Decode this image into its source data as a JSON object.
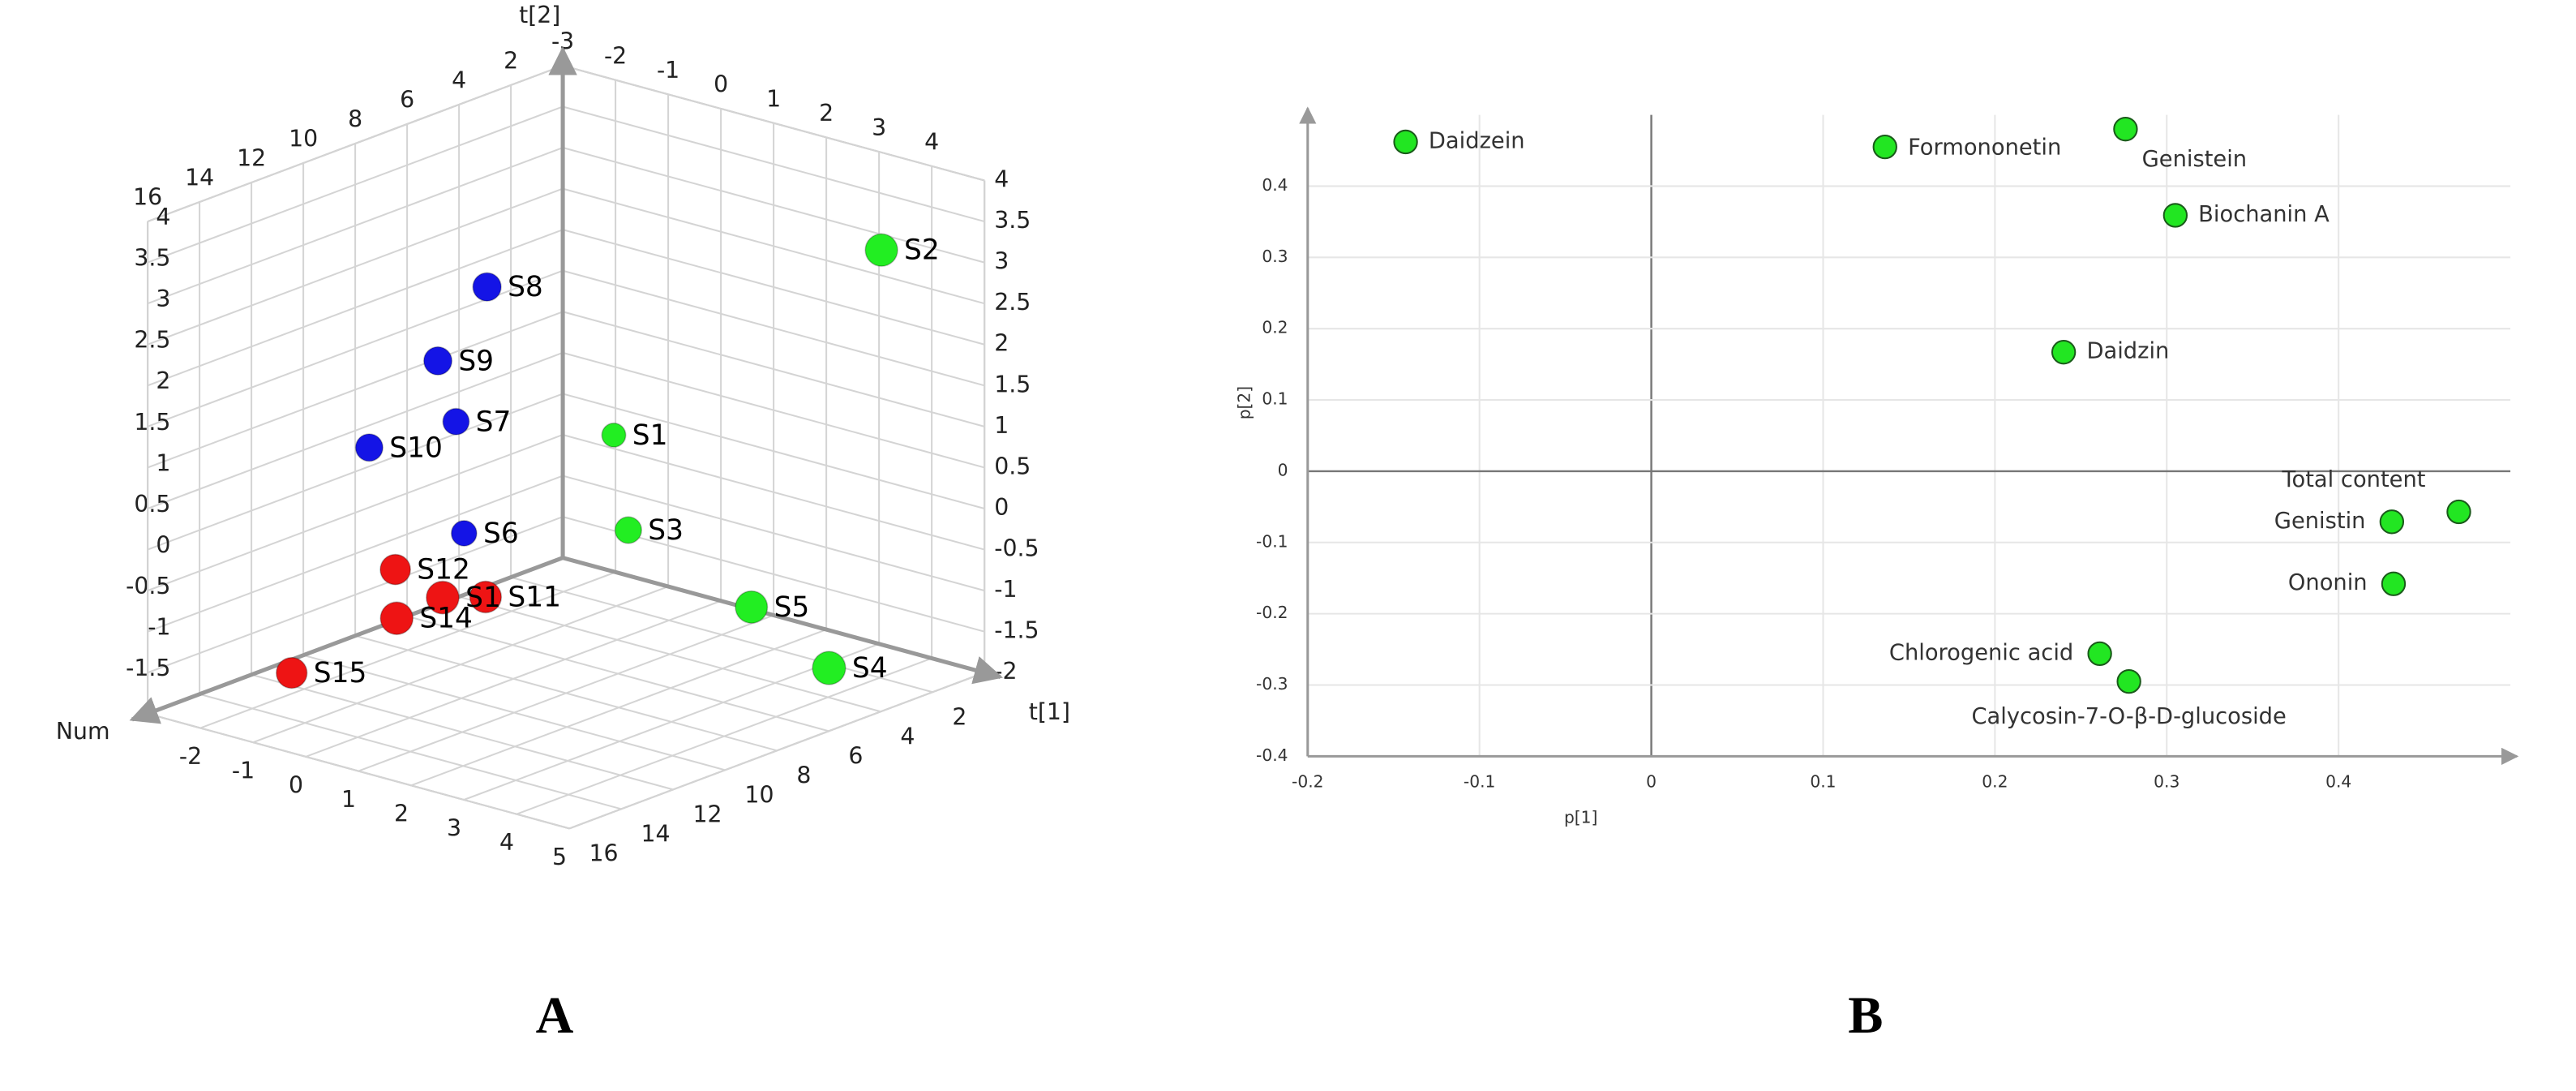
{
  "chart_data": [
    {
      "type": "scatter3d",
      "label": "A",
      "xlabel": "t[1]",
      "ylabel": "t[2]",
      "zlabel": "Num",
      "xlim": [
        -3,
        5
      ],
      "xticks": [
        -3,
        -2,
        -1,
        0,
        1,
        2,
        3,
        4,
        5
      ],
      "ylim": [
        -2,
        4
      ],
      "yticks": [
        -2,
        -1.5,
        -1,
        -0.5,
        0,
        0.5,
        1,
        1.5,
        2,
        2.5,
        3,
        3.5,
        4
      ],
      "zlim": [
        0,
        16
      ],
      "zticks": [
        2,
        4,
        6,
        8,
        10,
        12,
        14,
        16
      ],
      "grid": true,
      "series": [
        {
          "color": "#22ee22",
          "labels": [
            "S1",
            "S2",
            "S3",
            "S4",
            "S5"
          ],
          "x": [
            -1.54,
            4.03,
            -0.28,
            4.02,
            3.04
          ],
          "values": [
            -0.13,
            3.22,
            -0.83,
            -1.64,
            -0.95
          ],
          "z": [
            1,
            2,
            3,
            4,
            5
          ]
        },
        {
          "color": "#1414e6",
          "labels": [
            "S6",
            "S7",
            "S8",
            "S9",
            "S10"
          ],
          "x": [
            -1.92,
            -1.58,
            -0.5,
            -0.94,
            -1.75
          ],
          "values": [
            -0.8,
            0.74,
            2.69,
            1.83,
            0.75
          ],
          "z": [
            6,
            7,
            8,
            9,
            10
          ]
        },
        {
          "color": "#ee1414",
          "labels": [
            "S11",
            "S12",
            "S1",
            "S14",
            "S15"
          ],
          "x": [
            0.95,
            -0.27,
            1.12,
            0.74,
            -0.76
          ],
          "values": [
            -0.48,
            -0.24,
            -0.22,
            -0.42,
            -1.23
          ],
          "z": [
            11,
            12,
            13,
            14,
            15
          ]
        }
      ]
    },
    {
      "type": "scatter",
      "label": "B",
      "xlabel": "p[1]",
      "ylabel": "p[2]",
      "xlim": [
        -0.2,
        0.5
      ],
      "xticks": [
        -0.2,
        -0.1,
        0,
        0.1,
        0.2,
        0.3,
        0.4
      ],
      "ylim": [
        -0.4,
        0.5
      ],
      "yticks": [
        -0.4,
        -0.3,
        -0.2,
        -0.1,
        0,
        0.1,
        0.2,
        0.3,
        0.4
      ],
      "grid": true,
      "series": [
        {
          "color": "#22e622",
          "labels": [
            "Daidzein",
            "Formononetin",
            "Genistein",
            "Biochanin A",
            "Daidzin",
            "Total content",
            "Genistin",
            "Ononin",
            "Chlorogenic acid",
            "Calycosin-7-O-β-D-glucoside"
          ],
          "x": [
            -0.143,
            0.136,
            0.276,
            0.305,
            0.24,
            0.47,
            0.431,
            0.432,
            0.261,
            0.278
          ],
          "values": [
            0.462,
            0.455,
            0.48,
            0.359,
            0.167,
            -0.057,
            -0.071,
            -0.158,
            -0.256,
            -0.295
          ]
        }
      ]
    }
  ]
}
